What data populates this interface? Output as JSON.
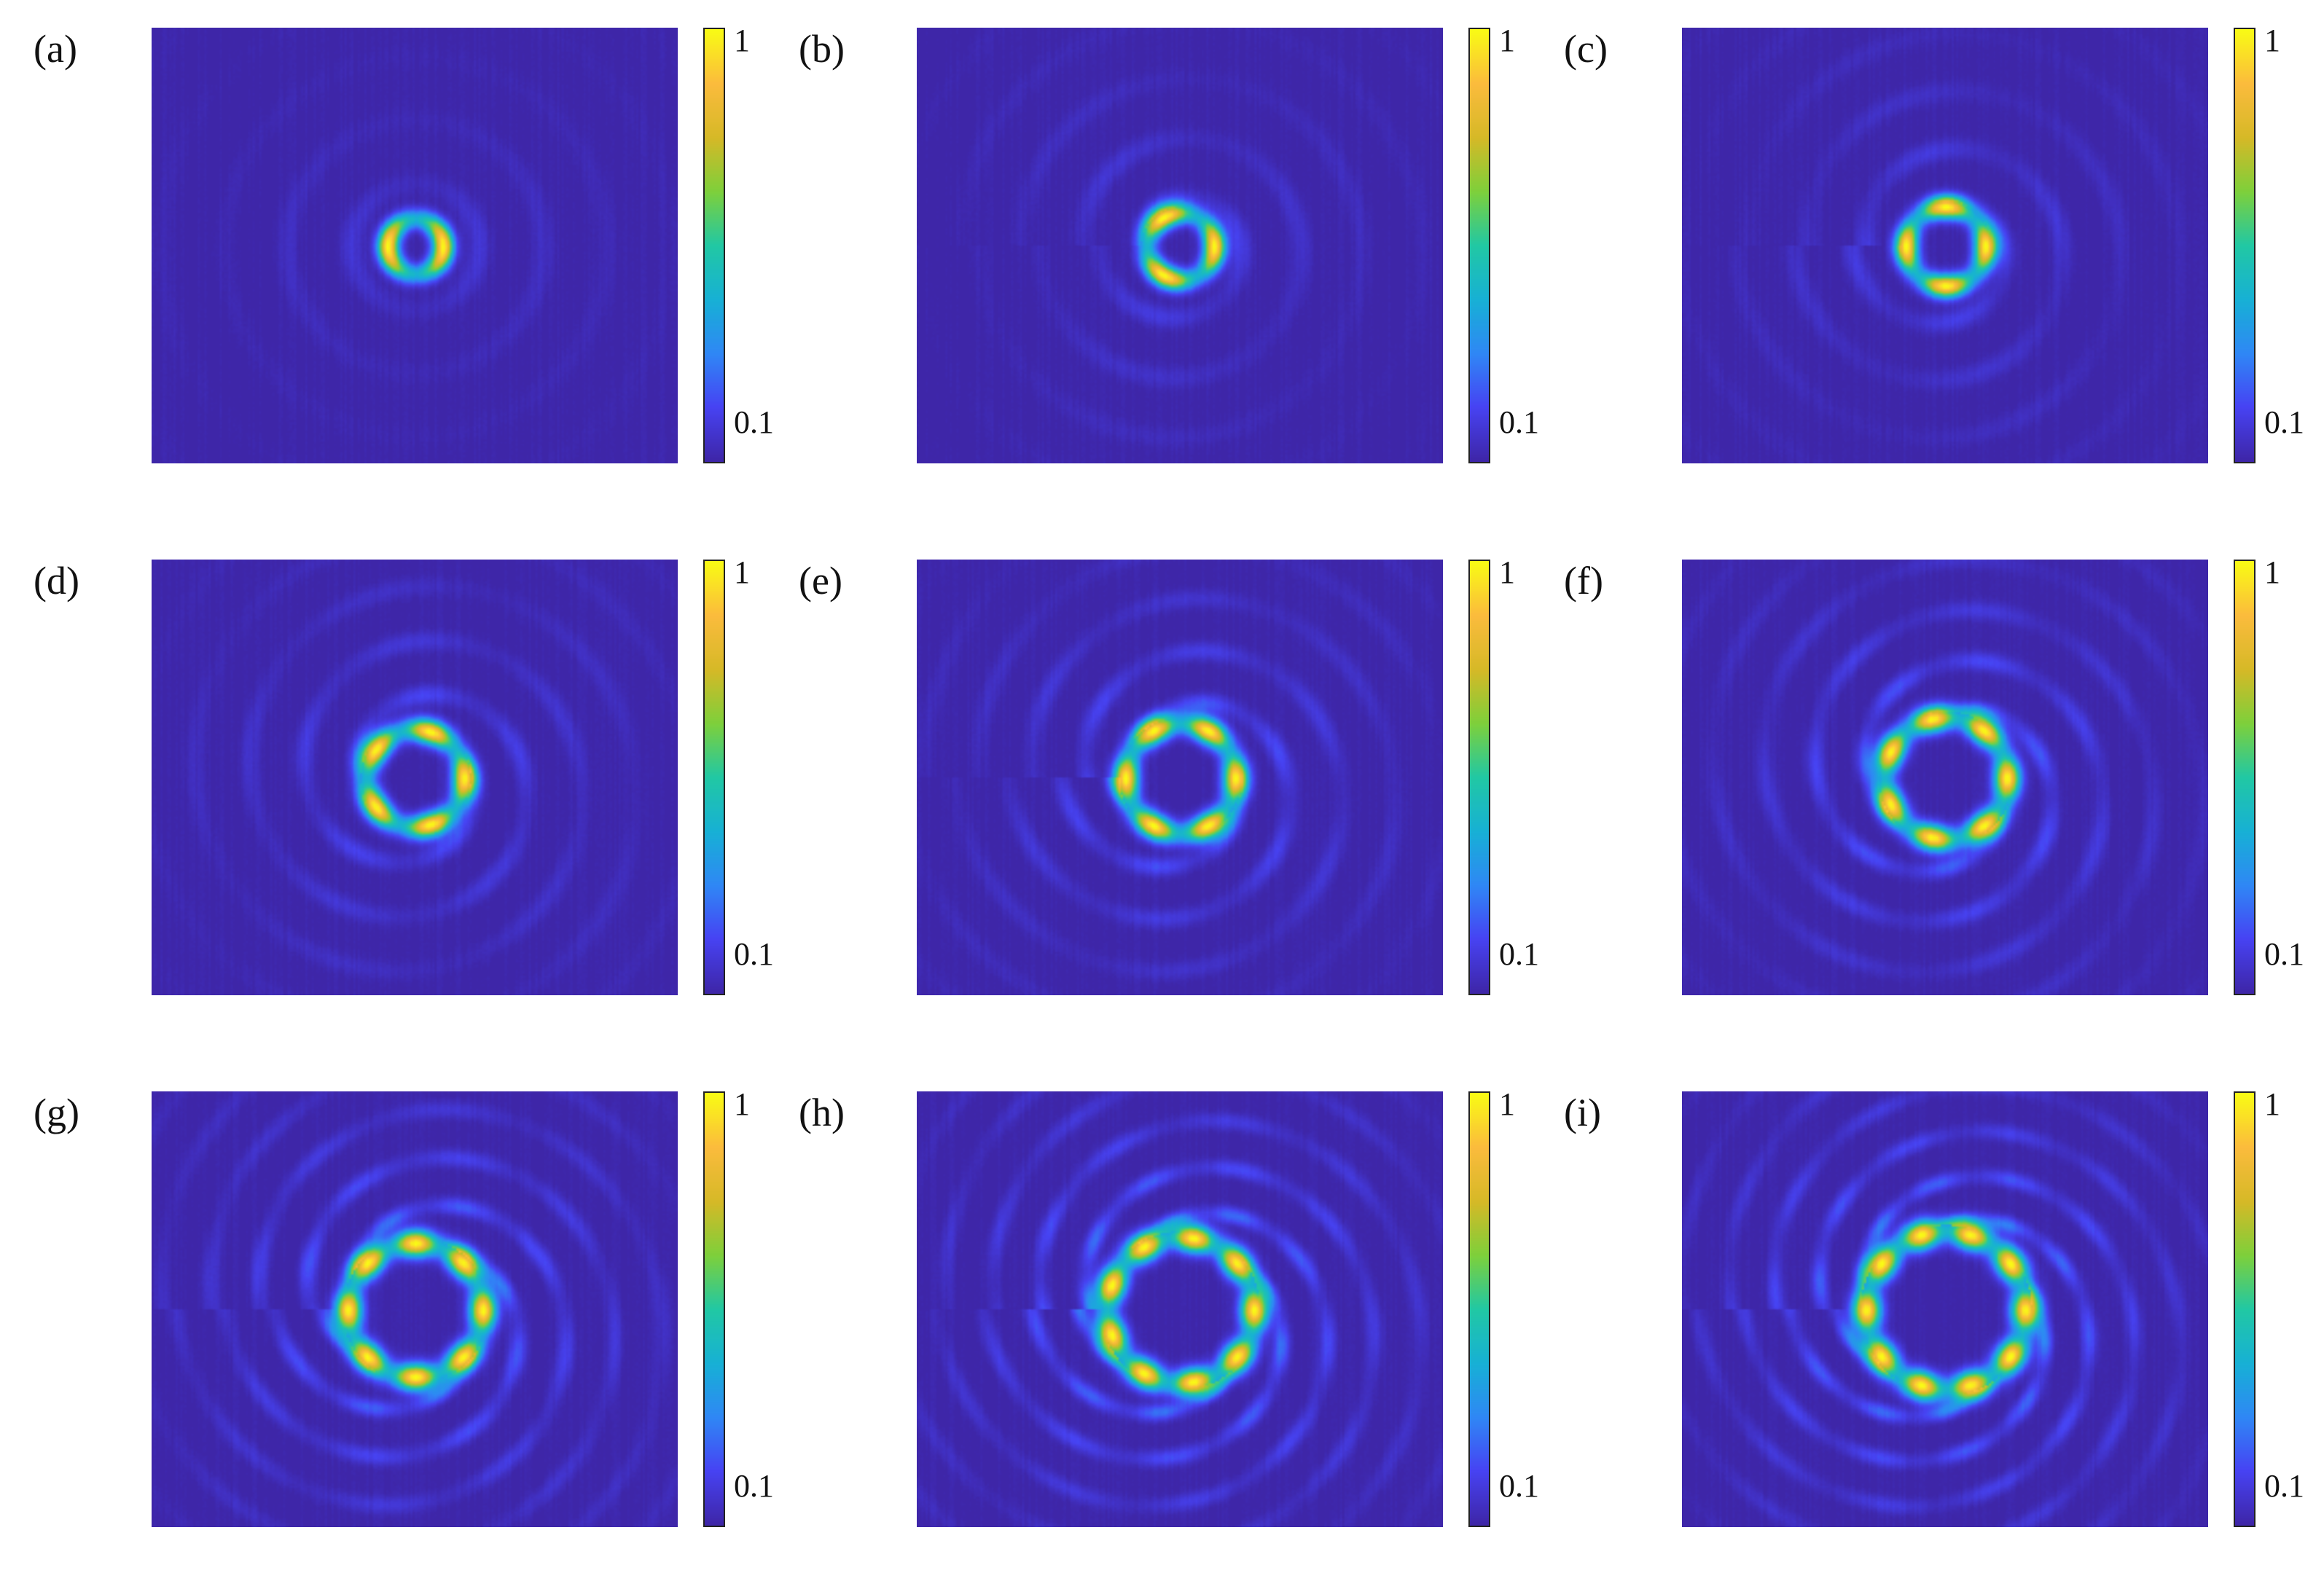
{
  "chart_data": [
    {
      "type": "heatmap",
      "label": "(a)",
      "ring_radius": 0.45,
      "lobes": 2,
      "fringe_strength": 0.35,
      "twist": 0.0,
      "colorbar": {
        "min_label": "0.1",
        "max_label": "1"
      }
    },
    {
      "type": "heatmap",
      "label": "(b)",
      "ring_radius": 0.55,
      "lobes": 3,
      "fringe_strength": 0.45,
      "twist": 0.3,
      "colorbar": {
        "min_label": "0.1",
        "max_label": "1"
      }
    },
    {
      "type": "heatmap",
      "label": "(c)",
      "ring_radius": 0.65,
      "lobes": 4,
      "fringe_strength": 0.5,
      "twist": 0.5,
      "colorbar": {
        "min_label": "0.1",
        "max_label": "1"
      }
    },
    {
      "type": "heatmap",
      "label": "(d)",
      "ring_radius": 0.8,
      "lobes": 5,
      "fringe_strength": 0.6,
      "twist": 0.8,
      "colorbar": {
        "min_label": "0.1",
        "max_label": "1"
      }
    },
    {
      "type": "heatmap",
      "label": "(e)",
      "ring_radius": 0.9,
      "lobes": 6,
      "fringe_strength": 0.7,
      "twist": 1.0,
      "colorbar": {
        "min_label": "0.1",
        "max_label": "1"
      }
    },
    {
      "type": "heatmap",
      "label": "(f)",
      "ring_radius": 1.0,
      "lobes": 7,
      "fringe_strength": 0.8,
      "twist": 1.2,
      "colorbar": {
        "min_label": "0.1",
        "max_label": "1"
      }
    },
    {
      "type": "heatmap",
      "label": "(g)",
      "ring_radius": 1.1,
      "lobes": 8,
      "fringe_strength": 0.9,
      "twist": 1.5,
      "colorbar": {
        "min_label": "0.1",
        "max_label": "1"
      }
    },
    {
      "type": "heatmap",
      "label": "(h)",
      "ring_radius": 1.2,
      "lobes": 9,
      "fringe_strength": 1.0,
      "twist": 1.7,
      "colorbar": {
        "min_label": "0.1",
        "max_label": "1"
      }
    },
    {
      "type": "heatmap",
      "label": "(i)",
      "ring_radius": 1.3,
      "lobes": 10,
      "fringe_strength": 1.0,
      "twist": 1.9,
      "colorbar": {
        "min_label": "0.1",
        "max_label": "1"
      }
    }
  ],
  "colormap": [
    "#3e26a8",
    "#4743f3",
    "#2f88f5",
    "#17b1d5",
    "#21c8a4",
    "#7ed03b",
    "#d6b927",
    "#fbbb3d",
    "#f9fb15"
  ]
}
